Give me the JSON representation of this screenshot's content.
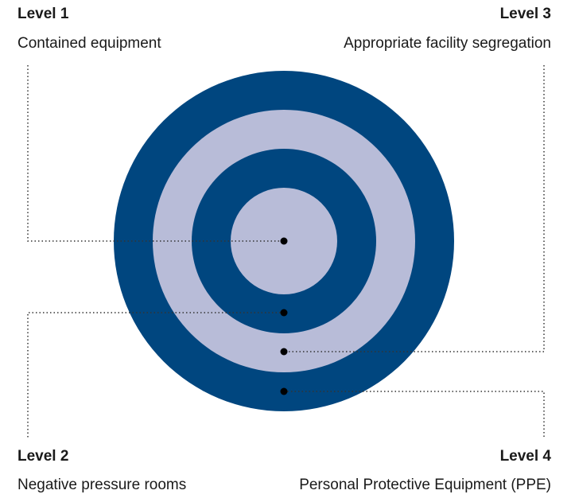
{
  "levels": [
    {
      "id": "level1",
      "title": "Level 1",
      "description": "Contained equipment"
    },
    {
      "id": "level2",
      "title": "Level 2",
      "description": "Negative pressure rooms"
    },
    {
      "id": "level3",
      "title": "Level 3",
      "description": "Appropriate facility segregation"
    },
    {
      "id": "level4",
      "title": "Level 4",
      "description": "Personal Protective Equipment (PPE)"
    }
  ],
  "colors": {
    "dark_ring": "#00467F",
    "light_ring": "#B8BCD8",
    "leader_line": "#333333",
    "text": "#1a1a1a"
  }
}
